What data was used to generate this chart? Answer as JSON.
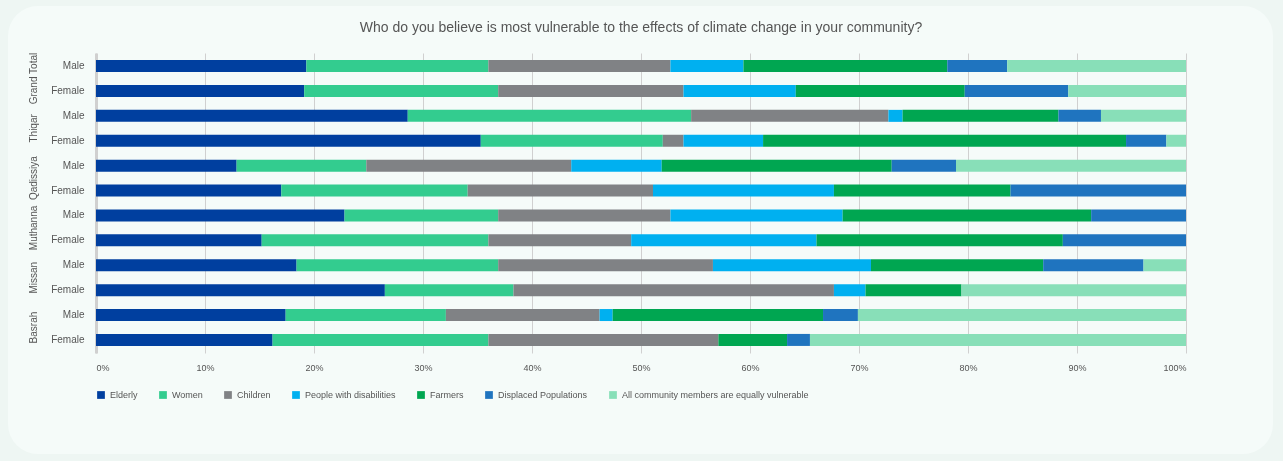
{
  "chart_data": {
    "type": "bar",
    "orientation": "horizontal",
    "stacked": true,
    "title": "Who do you believe is most vulnerable to the effects of climate change in your community?",
    "categories": [
      "Male",
      "Female",
      "Male",
      "Female",
      "Male",
      "Female",
      "Male",
      "Female",
      "Male",
      "Female",
      "Male",
      "Female"
    ],
    "annotations": [
      "Grand Total",
      "Thiqar",
      "Qadissiya",
      "Muthanna",
      "Missan",
      "Basrah"
    ],
    "series": [
      {
        "name": "Elderly",
        "color": "#003f9f",
        "values": [
          19.3,
          19.1,
          28.6,
          35.3,
          12.9,
          17.0,
          22.8,
          15.2,
          18.4,
          26.5,
          17.4,
          16.2
        ]
      },
      {
        "name": "Women",
        "color": "#33cc8f",
        "values": [
          16.7,
          17.8,
          26.0,
          16.7,
          11.9,
          17.1,
          14.1,
          20.8,
          18.5,
          11.8,
          14.7,
          19.8
        ]
      },
      {
        "name": "Children",
        "color": "#808285",
        "values": [
          16.7,
          17.0,
          18.1,
          1.9,
          18.8,
          17.0,
          15.8,
          13.1,
          19.7,
          29.4,
          14.1,
          21.1
        ]
      },
      {
        "name": "People with disabilities",
        "color": "#00b0f0",
        "values": [
          6.7,
          10.3,
          1.3,
          7.3,
          8.3,
          16.6,
          15.8,
          17.0,
          14.5,
          2.9,
          1.2,
          0
        ]
      },
      {
        "name": "Farmers",
        "color": "#00a651",
        "values": [
          18.7,
          15.5,
          14.3,
          33.3,
          21.1,
          16.2,
          22.8,
          22.6,
          15.8,
          8.8,
          19.3,
          6.3
        ]
      },
      {
        "name": "Displaced Populations",
        "color": "#1f74bf",
        "values": [
          5.5,
          9.5,
          3.9,
          3.7,
          5.9,
          16.1,
          8.7,
          11.3,
          9.2,
          0,
          3.2,
          2.1
        ]
      },
      {
        "name": "All community members are equally vulnerable",
        "color": "#88dfb8",
        "values": [
          16.4,
          10.8,
          7.8,
          1.8,
          21.1,
          0,
          0,
          0,
          3.9,
          20.6,
          30.1,
          34.5
        ]
      }
    ],
    "xlim": [
      0,
      100
    ],
    "xticks": [
      {
        "value": 0,
        "label": "0%"
      },
      {
        "value": 10,
        "label": "10%"
      },
      {
        "value": 20,
        "label": "20%"
      },
      {
        "value": 30,
        "label": "30%"
      },
      {
        "value": 40,
        "label": "40%"
      },
      {
        "value": 50,
        "label": "50%"
      },
      {
        "value": 60,
        "label": "60%"
      },
      {
        "value": 70,
        "label": "70%"
      },
      {
        "value": 80,
        "label": "80%"
      },
      {
        "value": 90,
        "label": "90%"
      },
      {
        "value": 100,
        "label": "100%"
      }
    ],
    "grid": "x",
    "legend": "bottom"
  }
}
